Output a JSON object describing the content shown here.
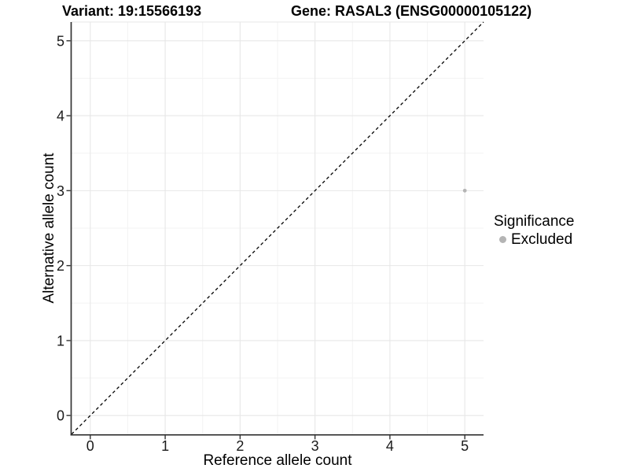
{
  "header": {
    "variant_title": "Variant: 19:15566193",
    "gene_title": "Gene: RASAL3 (ENSG00000105122)"
  },
  "chart_data": {
    "type": "scatter",
    "xlabel": "Reference allele count",
    "ylabel": "Alternative allele count",
    "xlim": [
      -0.25,
      5.25
    ],
    "ylim": [
      -0.25,
      5.25
    ],
    "xticks": [
      0,
      1,
      2,
      3,
      4,
      5
    ],
    "yticks": [
      0,
      1,
      2,
      3,
      4,
      5
    ],
    "grid": "major and minor gridlines on, white background",
    "identity_line": {
      "slope": 1,
      "intercept": 0,
      "style": "dashed",
      "color": "#000000"
    },
    "points": [
      {
        "x": 5,
        "y": 3,
        "significance": "Excluded"
      }
    ],
    "legend": {
      "title": "Significance",
      "position": "right",
      "entries": [
        {
          "label": "Excluded",
          "color": "#b4b4b4"
        }
      ]
    },
    "colors": {
      "background": "#ffffff",
      "point": "#b4b4b4",
      "grid_major": "#e7e7e7",
      "grid_minor": "#f3f3f3",
      "panel_top_border": "#e7e7e7",
      "axis_line": "#333333",
      "tick": "#333333",
      "tick_label": "#1a1a1a",
      "axis_title": "#000000"
    }
  }
}
